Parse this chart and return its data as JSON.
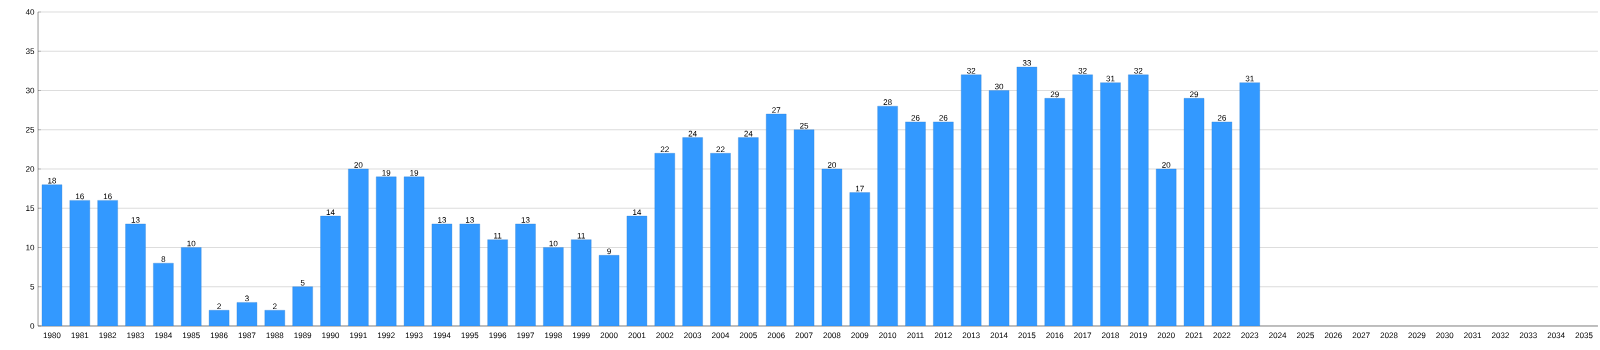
{
  "chart_data": {
    "type": "bar",
    "categories": [
      "1980",
      "1981",
      "1982",
      "1983",
      "1984",
      "1985",
      "1986",
      "1987",
      "1988",
      "1989",
      "1990",
      "1991",
      "1992",
      "1993",
      "1994",
      "1995",
      "1996",
      "1997",
      "1998",
      "1999",
      "2000",
      "2001",
      "2002",
      "2003",
      "2004",
      "2005",
      "2006",
      "2007",
      "2008",
      "2009",
      "2010",
      "2011",
      "2012",
      "2013",
      "2014",
      "2015",
      "2016",
      "2017",
      "2018",
      "2019",
      "2020",
      "2021",
      "2022",
      "2023",
      "2024",
      "2025",
      "2026",
      "2027",
      "2028",
      "2029",
      "2030",
      "2031",
      "2032",
      "2033",
      "2034",
      "2035"
    ],
    "values": [
      18,
      16,
      16,
      13,
      8,
      10,
      2,
      3,
      2,
      5,
      14,
      20,
      19,
      19,
      13,
      13,
      11,
      13,
      10,
      11,
      9,
      14,
      22,
      24,
      22,
      24,
      27,
      25,
      20,
      17,
      28,
      26,
      26,
      32,
      30,
      33,
      29,
      32,
      31,
      32,
      20,
      29,
      26,
      31,
      null,
      null,
      null,
      null,
      null,
      null,
      null,
      null,
      null,
      null,
      null,
      null
    ],
    "color": "#3399ff",
    "ylim": [
      0,
      40
    ],
    "yticks": [
      0,
      5,
      10,
      15,
      20,
      25,
      30,
      35,
      40
    ],
    "grid": "y",
    "data_labels": true
  }
}
